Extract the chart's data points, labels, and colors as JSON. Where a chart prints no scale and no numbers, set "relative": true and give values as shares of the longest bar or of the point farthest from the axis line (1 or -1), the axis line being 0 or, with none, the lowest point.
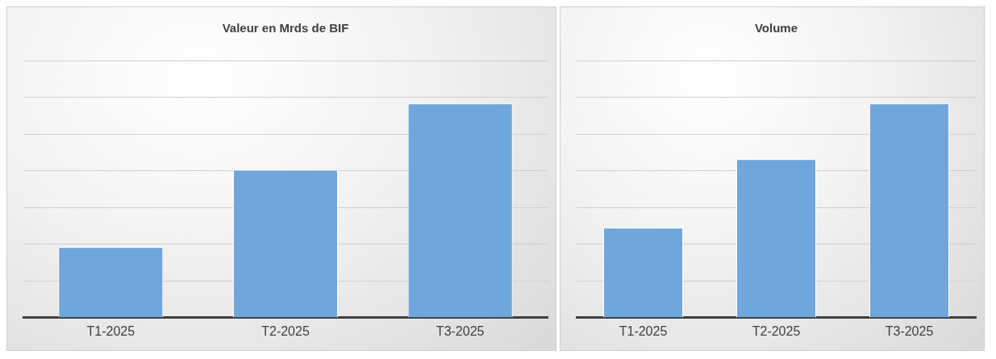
{
  "chart_data": [
    {
      "type": "bar",
      "title": "Valeur en Mrds de BIF",
      "categories": [
        "T1-2025",
        "T2-2025",
        "T3-2025"
      ],
      "relative": true,
      "values": [
        0.33,
        0.69,
        1
      ],
      "color": "#6fa6db",
      "grid": "y",
      "legend": false
    },
    {
      "type": "bar",
      "title": "Volume",
      "categories": [
        "T1-2025",
        "T2-2025",
        "T3-2025"
      ],
      "relative": true,
      "values": [
        0.42,
        0.74,
        1
      ],
      "color": "#6fa6db",
      "grid": "y",
      "legend": false
    }
  ]
}
